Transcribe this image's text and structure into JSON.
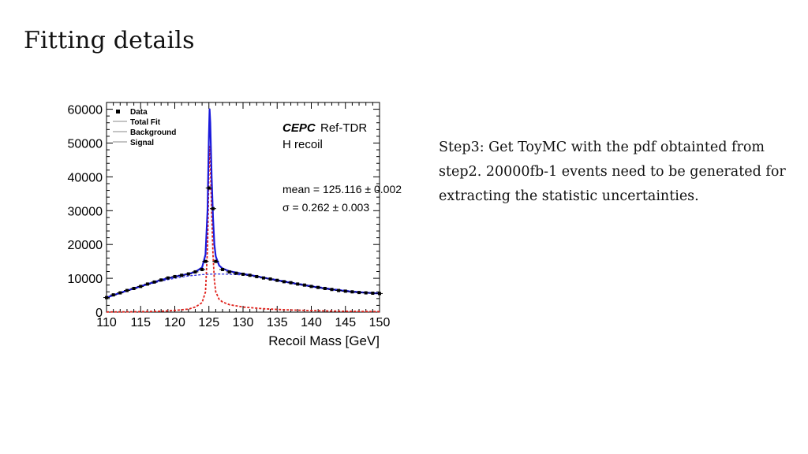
{
  "slide": {
    "title": "Fitting details",
    "body": "Step3: Get ToyMC with the pdf obtainted from step2. 20000fb-1 events need to be generated for extracting the statistic uncertainties."
  },
  "chart_data": {
    "type": "line",
    "xlabel": "Recoil Mass [GeV]",
    "ylabel": "",
    "xlim": [
      110,
      150
    ],
    "ylim": [
      0,
      62000
    ],
    "x_ticks": [
      "110",
      "115",
      "120",
      "125",
      "130",
      "135",
      "140",
      "145",
      "150"
    ],
    "y_ticks": [
      "0",
      "10000",
      "20000",
      "30000",
      "40000",
      "50000",
      "60000"
    ],
    "legend": {
      "position": "top-left",
      "entries": [
        "Data",
        "Total Fit",
        "Background",
        "Signal"
      ]
    },
    "annotations": {
      "brand": "CEPC",
      "brand_suffix": "Ref-TDR",
      "subtitle": "H recoil",
      "mean": "mean = 125.116 ± 0.002",
      "sigma": "σ = 0.262 ± 0.003"
    },
    "colors": {
      "total_fit": "#1a1adb",
      "background": "#2a2ae0",
      "signal": "#e0201a",
      "data": "#000000"
    },
    "data_points": [
      {
        "x": 110.0,
        "y": 4300
      },
      {
        "x": 111.0,
        "y": 5100
      },
      {
        "x": 112.0,
        "y": 5700
      },
      {
        "x": 113.0,
        "y": 6400
      },
      {
        "x": 114.0,
        "y": 7000
      },
      {
        "x": 115.0,
        "y": 7600
      },
      {
        "x": 116.0,
        "y": 8300
      },
      {
        "x": 117.0,
        "y": 8900
      },
      {
        "x": 118.0,
        "y": 9500
      },
      {
        "x": 119.0,
        "y": 10100
      },
      {
        "x": 120.0,
        "y": 10500
      },
      {
        "x": 121.0,
        "y": 10900
      },
      {
        "x": 122.0,
        "y": 11300
      },
      {
        "x": 123.0,
        "y": 11900
      },
      {
        "x": 124.0,
        "y": 12600
      },
      {
        "x": 124.5,
        "y": 15000
      },
      {
        "x": 125.0,
        "y": 36700
      },
      {
        "x": 125.6,
        "y": 30600
      },
      {
        "x": 126.0,
        "y": 15000
      },
      {
        "x": 127.0,
        "y": 12600
      },
      {
        "x": 128.0,
        "y": 11900
      },
      {
        "x": 129.0,
        "y": 11500
      },
      {
        "x": 130.0,
        "y": 11200
      },
      {
        "x": 131.0,
        "y": 10900
      },
      {
        "x": 132.0,
        "y": 10500
      },
      {
        "x": 133.0,
        "y": 10100
      },
      {
        "x": 134.0,
        "y": 9800
      },
      {
        "x": 135.0,
        "y": 9400
      },
      {
        "x": 136.0,
        "y": 9000
      },
      {
        "x": 137.0,
        "y": 8700
      },
      {
        "x": 138.0,
        "y": 8300
      },
      {
        "x": 139.0,
        "y": 8000
      },
      {
        "x": 140.0,
        "y": 7600
      },
      {
        "x": 141.0,
        "y": 7300
      },
      {
        "x": 142.0,
        "y": 7000
      },
      {
        "x": 143.0,
        "y": 6700
      },
      {
        "x": 144.0,
        "y": 6400
      },
      {
        "x": 145.0,
        "y": 6200
      },
      {
        "x": 146.0,
        "y": 6000
      },
      {
        "x": 147.0,
        "y": 5800
      },
      {
        "x": 148.0,
        "y": 5700
      },
      {
        "x": 149.0,
        "y": 5600
      },
      {
        "x": 150.0,
        "y": 5500
      }
    ],
    "series": [
      {
        "name": "Total Fit",
        "style": "solid",
        "x": [
          110,
          112,
          114,
          116,
          118,
          120,
          122,
          123,
          124,
          124.5,
          124.8,
          125.0,
          125.1,
          125.2,
          125.4,
          125.6,
          125.8,
          126.0,
          126.5,
          127,
          128,
          130,
          132,
          135,
          138,
          140,
          143,
          146,
          150
        ],
        "y": [
          4300,
          5700,
          7000,
          8300,
          9500,
          10500,
          11300,
          11900,
          13200,
          17000,
          30000,
          52000,
          60000,
          56000,
          40000,
          28000,
          20000,
          16500,
          13800,
          12900,
          12100,
          11300,
          10600,
          9400,
          8300,
          7600,
          6700,
          6000,
          5500
        ]
      },
      {
        "name": "Background",
        "style": "dashed",
        "x": [
          110,
          112,
          114,
          116,
          118,
          120,
          122,
          124,
          126,
          128,
          130,
          132,
          135,
          138,
          140,
          143,
          146,
          150
        ],
        "y": [
          4300,
          5600,
          6900,
          8100,
          9200,
          10000,
          10700,
          11100,
          11300,
          11200,
          11000,
          10600,
          9600,
          8500,
          7800,
          6900,
          6200,
          5500
        ]
      },
      {
        "name": "Signal",
        "style": "dashed",
        "x": [
          110,
          114,
          118,
          120,
          122,
          123,
          124,
          124.5,
          124.8,
          125.0,
          125.1,
          125.2,
          125.4,
          125.6,
          125.8,
          126.0,
          126.5,
          127,
          128,
          130,
          133,
          136,
          140,
          145,
          150
        ],
        "y": [
          50,
          100,
          250,
          500,
          900,
          1500,
          2800,
          6000,
          19000,
          42000,
          49000,
          45000,
          30000,
          17000,
          9500,
          6000,
          3800,
          3000,
          2200,
          1500,
          1000,
          700,
          450,
          250,
          150
        ]
      }
    ]
  }
}
